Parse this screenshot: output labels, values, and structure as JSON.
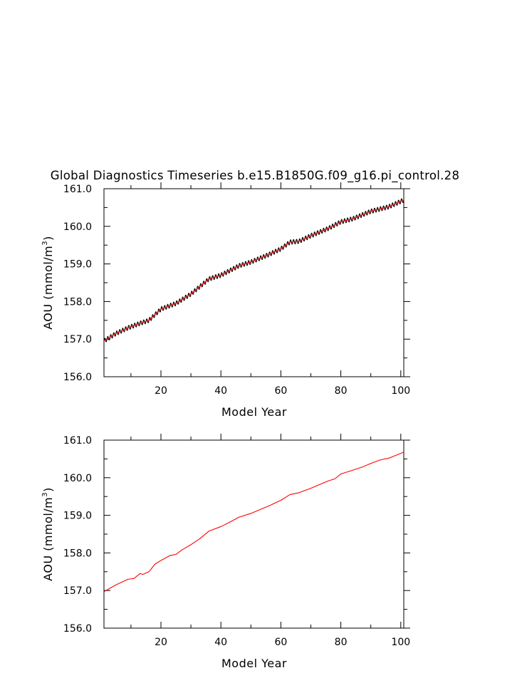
{
  "title": "Global Diagnostics Timeseries b.e15.B1850G.f09_g16.pi_control.28",
  "chart_data": [
    {
      "type": "line",
      "xlabel": "Model Year",
      "ylabel_main": "AOU  (mmol/m",
      "ylabel_sup": "3",
      "ylabel_close": ")",
      "xlim": [
        1,
        101
      ],
      "ylim": [
        156.0,
        161.0
      ],
      "xticks": [
        20,
        40,
        60,
        80,
        100
      ],
      "yticks": [
        156.0,
        157.0,
        158.0,
        159.0,
        160.0,
        161.0
      ],
      "ytick_labels": [
        "156.0",
        "157.0",
        "158.0",
        "159.0",
        "160.0",
        "161.0"
      ],
      "series": [
        {
          "kind": "monthly",
          "color": "#000000",
          "seasonal_amplitude": 0.06
        },
        {
          "kind": "annual",
          "color": "#ff0000"
        }
      ],
      "x": [
        1,
        5,
        9,
        13,
        16,
        20,
        25,
        30,
        36,
        40,
        46,
        50,
        56,
        60,
        63,
        66,
        70,
        76,
        80,
        84,
        90,
        96,
        101
      ],
      "y": [
        156.95,
        157.15,
        157.3,
        157.42,
        157.5,
        157.8,
        157.95,
        158.2,
        158.6,
        158.7,
        158.95,
        159.05,
        159.25,
        159.4,
        159.58,
        159.6,
        159.75,
        159.95,
        160.12,
        160.2,
        160.4,
        160.52,
        160.7
      ]
    },
    {
      "type": "line",
      "xlabel": "Model Year",
      "ylabel_main": "AOU  (mmol/m",
      "ylabel_sup": "3",
      "ylabel_close": ")",
      "xlim": [
        1,
        101
      ],
      "ylim": [
        156.0,
        161.0
      ],
      "xticks": [
        20,
        40,
        60,
        80,
        100
      ],
      "yticks": [
        156.0,
        157.0,
        158.0,
        159.0,
        160.0,
        161.0
      ],
      "ytick_labels": [
        "156.0",
        "157.0",
        "158.0",
        "159.0",
        "160.0",
        "161.0"
      ],
      "series": [
        {
          "kind": "annual",
          "color": "#ff0000"
        }
      ],
      "x": [
        1,
        5,
        9,
        11,
        13,
        14,
        16,
        18,
        20,
        23,
        25,
        27,
        30,
        33,
        36,
        40,
        43,
        46,
        50,
        53,
        56,
        60,
        63,
        66,
        70,
        73,
        76,
        78,
        80,
        84,
        87,
        90,
        93,
        96,
        101
      ],
      "y": [
        156.97,
        157.15,
        157.3,
        157.32,
        157.45,
        157.43,
        157.5,
        157.7,
        157.8,
        157.93,
        157.96,
        158.08,
        158.22,
        158.38,
        158.58,
        158.7,
        158.82,
        158.95,
        159.05,
        159.15,
        159.25,
        159.4,
        159.55,
        159.6,
        159.72,
        159.82,
        159.92,
        159.97,
        160.1,
        160.2,
        160.28,
        160.38,
        160.47,
        160.52,
        160.68
      ]
    }
  ]
}
